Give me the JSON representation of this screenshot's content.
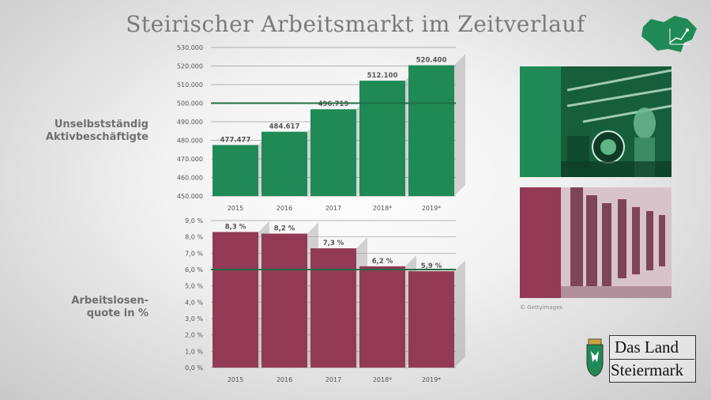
{
  "title": "Steirischer Arbeitsmarkt im Zeitverlauf",
  "colors": {
    "green": "#1f8a55",
    "red": "#923a55",
    "line": "#1f6e45"
  },
  "chart_data": [
    {
      "type": "bar",
      "row_label": [
        "Unselbstständig",
        "Aktivbeschäftigte"
      ],
      "categories": [
        "2015",
        "2016",
        "2017",
        "2018*",
        "2019*"
      ],
      "values": [
        477477,
        484617,
        496719,
        512100,
        520400
      ],
      "value_labels": [
        "477.477",
        "484.617",
        "496.719",
        "512.100",
        "520.400"
      ],
      "yticks": [
        "450.000",
        "460.000",
        "470.000",
        "480.000",
        "490.000",
        "500.000",
        "510.000",
        "520.000",
        "530.000"
      ],
      "ylim": [
        450000,
        530000
      ],
      "reference_line": 500000
    },
    {
      "type": "bar",
      "row_label": [
        "Arbeitslosen-",
        "quote in %"
      ],
      "categories": [
        "2015",
        "2016",
        "2017",
        "2018*",
        "2019*"
      ],
      "values": [
        8.3,
        8.2,
        7.3,
        6.2,
        5.9
      ],
      "value_labels": [
        "8,3 %",
        "8,2 %",
        "7,3 %",
        "6,2 %",
        "5,9 %"
      ],
      "yticks": [
        "0,0 %",
        "1,0 %",
        "2,0 %",
        "3,0 %",
        "4,0 %",
        "5,0 %",
        "6,0 %",
        "7,0 %",
        "8,0 %",
        "9,0 %"
      ],
      "ylim": [
        0,
        9
      ],
      "reference_line": 6.0
    }
  ],
  "photo_credit": "© Gettyimages",
  "logo": {
    "line1": "Das Land",
    "line2": "Steiermark"
  }
}
